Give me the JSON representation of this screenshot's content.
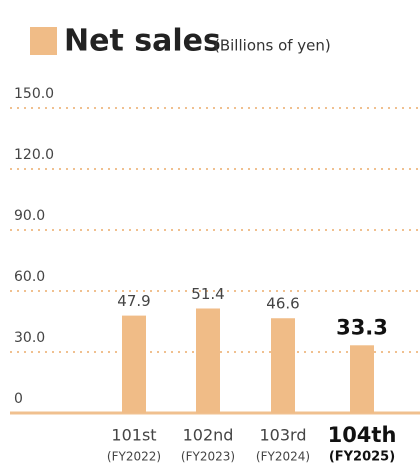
{
  "chart_data": {
    "type": "bar",
    "title": "Net sales",
    "subtitle": "(Billions of yen)",
    "categories": [
      "101st",
      "102nd",
      "103rd",
      "104th"
    ],
    "fiscal_years": [
      "(FY2022)",
      "(FY2023)",
      "(FY2024)",
      "(FY2025)"
    ],
    "values": [
      47.9,
      51.4,
      46.6,
      33.3
    ],
    "color": "#f0bc87",
    "ylim": [
      0,
      150
    ],
    "yticks": [
      0,
      {
        "value": 30,
        "label": "30.0"
      },
      {
        "value": 60,
        "label": "60.0"
      },
      {
        "value": 90,
        "label": "90.0"
      },
      {
        "value": 120,
        "label": "120.0"
      },
      {
        "value": 150,
        "label": "150.0"
      }
    ],
    "grid": true,
    "highlight_index": 3
  }
}
